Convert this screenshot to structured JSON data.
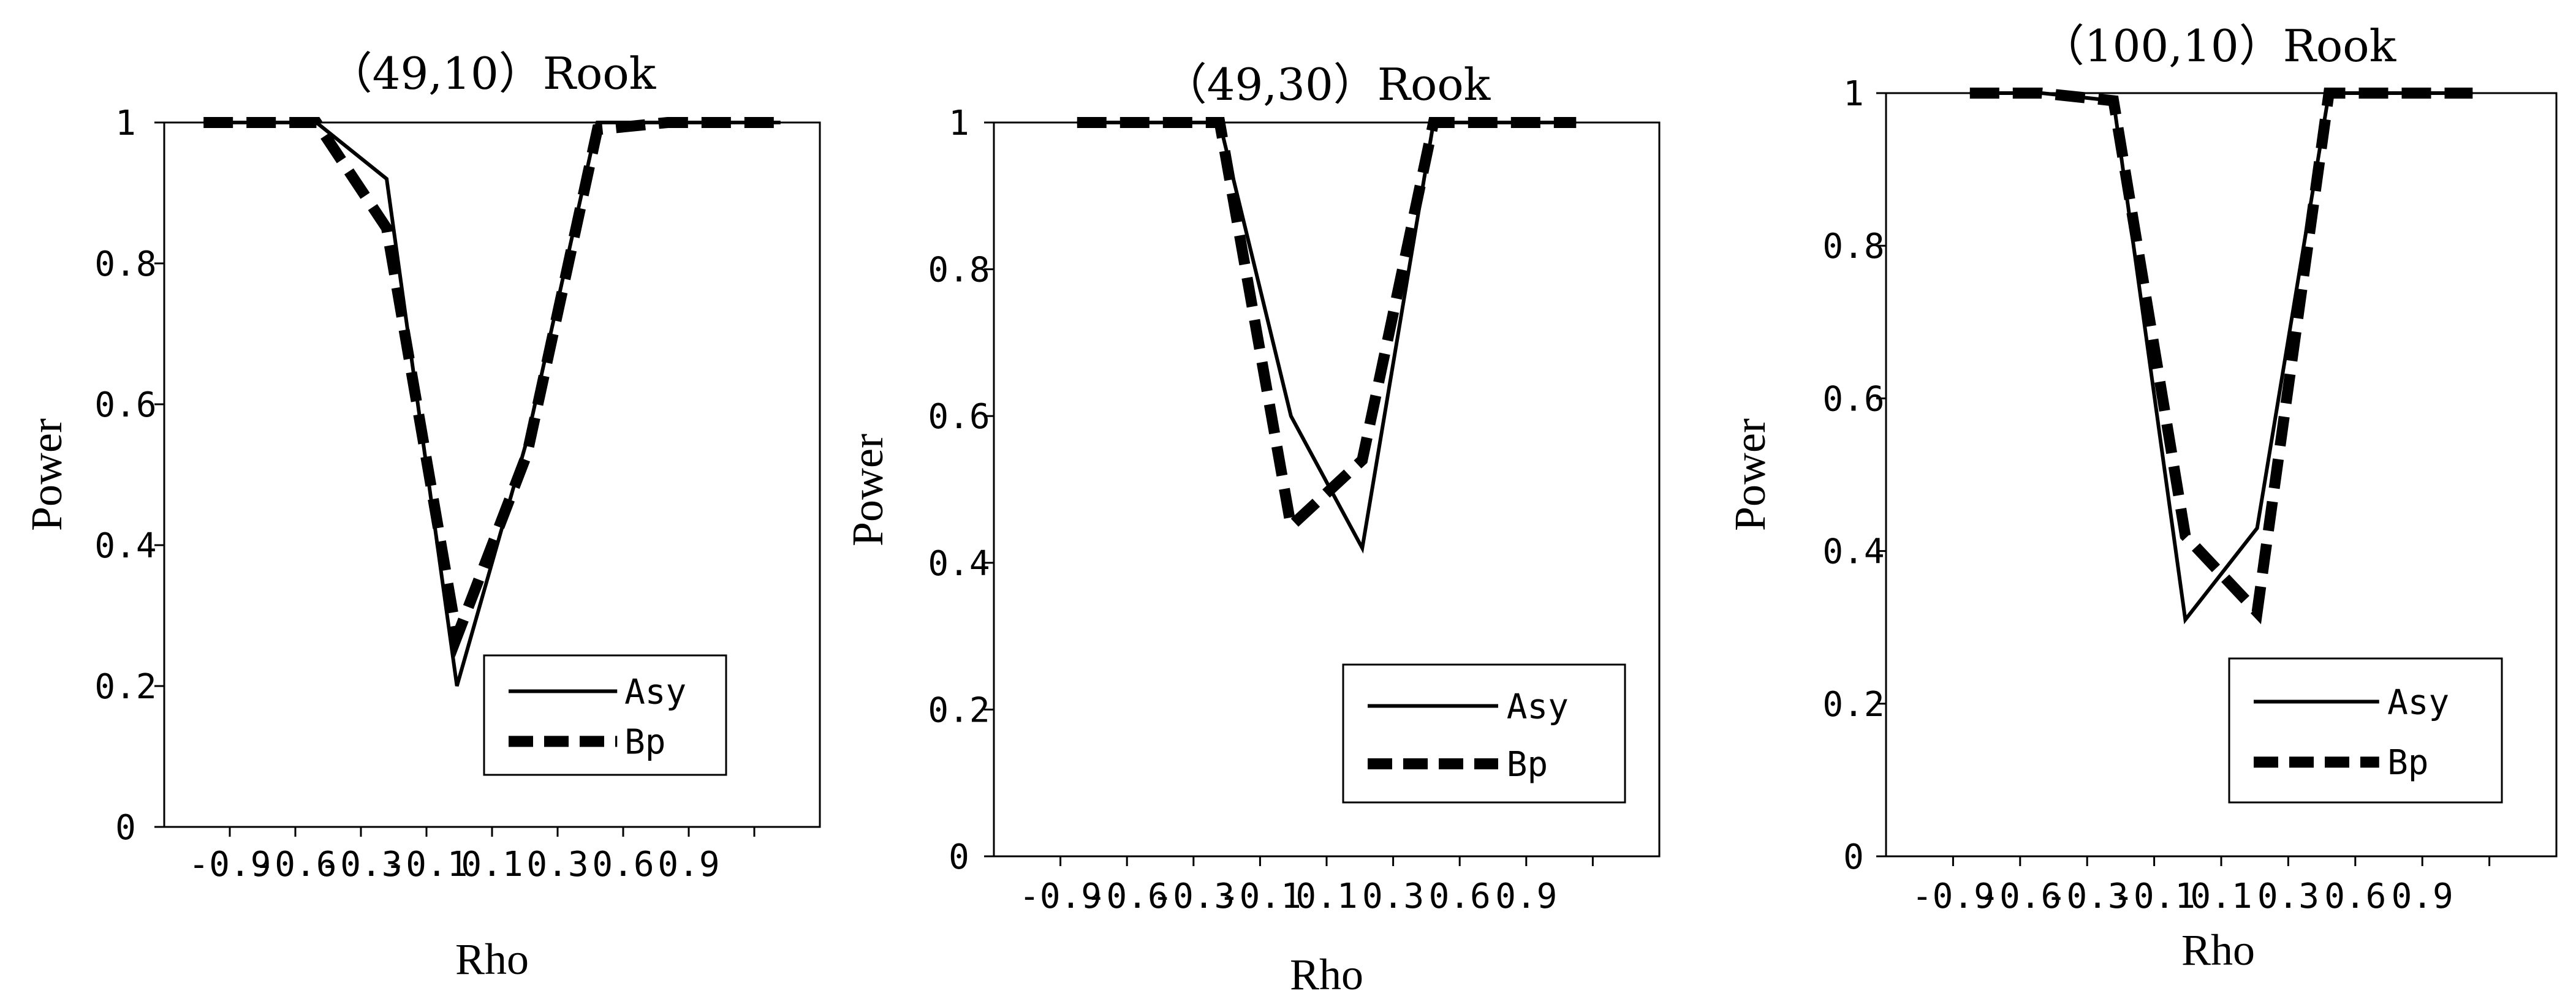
{
  "chart_data": [
    {
      "type": "line",
      "title": "（49,10）Rook",
      "xlabel": "Rho",
      "ylabel": "Power",
      "categories": [
        "-0.9",
        "-0.6",
        "-0.3",
        "-0.1",
        "0.1",
        "0.3",
        "0.6",
        "0.9"
      ],
      "ylim": [
        0,
        1
      ],
      "yticks": [
        "0",
        "0.2",
        "0.4",
        "0.6",
        "0.8",
        "1"
      ],
      "grid": false,
      "legend_position": "bottom-right",
      "series": [
        {
          "name": "Asy",
          "style": "solid",
          "x": [
            -1.0,
            -0.9,
            -0.6,
            -0.3,
            -0.1,
            0.1,
            0.3,
            0.6,
            0.9,
            1.0
          ],
          "values": [
            1.0,
            1.0,
            1.0,
            0.92,
            0.2,
            0.55,
            1.0,
            1.0,
            1.0,
            1.0
          ]
        },
        {
          "name": "Bp",
          "style": "dashed",
          "x": [
            -1.0,
            -0.9,
            -0.6,
            -0.3,
            -0.1,
            0.1,
            0.3,
            0.6,
            0.9,
            1.0
          ],
          "values": [
            1.0,
            1.0,
            1.0,
            0.85,
            0.27,
            0.53,
            0.99,
            1.0,
            1.0,
            1.0
          ]
        }
      ]
    },
    {
      "type": "line",
      "title": "（49,30）Rook",
      "xlabel": "Rho",
      "ylabel": "Power",
      "categories": [
        "-0.9",
        "-0.6",
        "-0.3",
        "-0.1",
        "0.1",
        "0.3",
        "0.6",
        "0.9"
      ],
      "ylim": [
        0,
        1
      ],
      "yticks": [
        "0",
        "0.2",
        "0.4",
        "0.6",
        "0.8",
        "1"
      ],
      "grid": false,
      "legend_position": "bottom-right",
      "series": [
        {
          "name": "Asy",
          "style": "solid",
          "x": [
            -0.9,
            -0.6,
            -0.3,
            -0.1,
            0.1,
            0.3,
            0.6,
            0.9
          ],
          "values": [
            1.0,
            1.0,
            1.0,
            0.6,
            0.42,
            1.0,
            1.0,
            1.0
          ]
        },
        {
          "name": "Bp",
          "style": "dashed",
          "x": [
            -0.9,
            -0.6,
            -0.3,
            -0.1,
            0.1,
            0.3,
            0.6,
            0.9
          ],
          "values": [
            1.0,
            1.0,
            1.0,
            0.45,
            0.54,
            1.0,
            1.0,
            1.0
          ]
        }
      ]
    },
    {
      "type": "line",
      "title": "（100,10）Rook",
      "xlabel": "Rho",
      "ylabel": "Power",
      "categories": [
        "-0.9",
        "-0.6",
        "-0.3",
        "-0.1",
        "0.1",
        "0.3",
        "0.6",
        "0.9"
      ],
      "ylim": [
        0,
        1
      ],
      "yticks": [
        "0",
        "0.2",
        "0.4",
        "0.6",
        "0.8",
        "1"
      ],
      "grid": false,
      "legend_position": "bottom-right",
      "series": [
        {
          "name": "Asy",
          "style": "solid",
          "x": [
            -0.9,
            -0.6,
            -0.3,
            -0.1,
            0.1,
            0.3,
            0.6,
            0.9
          ],
          "values": [
            1.0,
            1.0,
            0.99,
            0.31,
            0.43,
            1.0,
            1.0,
            1.0
          ]
        },
        {
          "name": "Bp",
          "style": "dashed",
          "x": [
            -0.9,
            -0.6,
            -0.3,
            -0.1,
            0.1,
            0.3,
            0.6,
            0.9
          ],
          "values": [
            1.0,
            1.0,
            0.99,
            0.42,
            0.32,
            1.0,
            1.0,
            1.0
          ]
        }
      ]
    }
  ]
}
